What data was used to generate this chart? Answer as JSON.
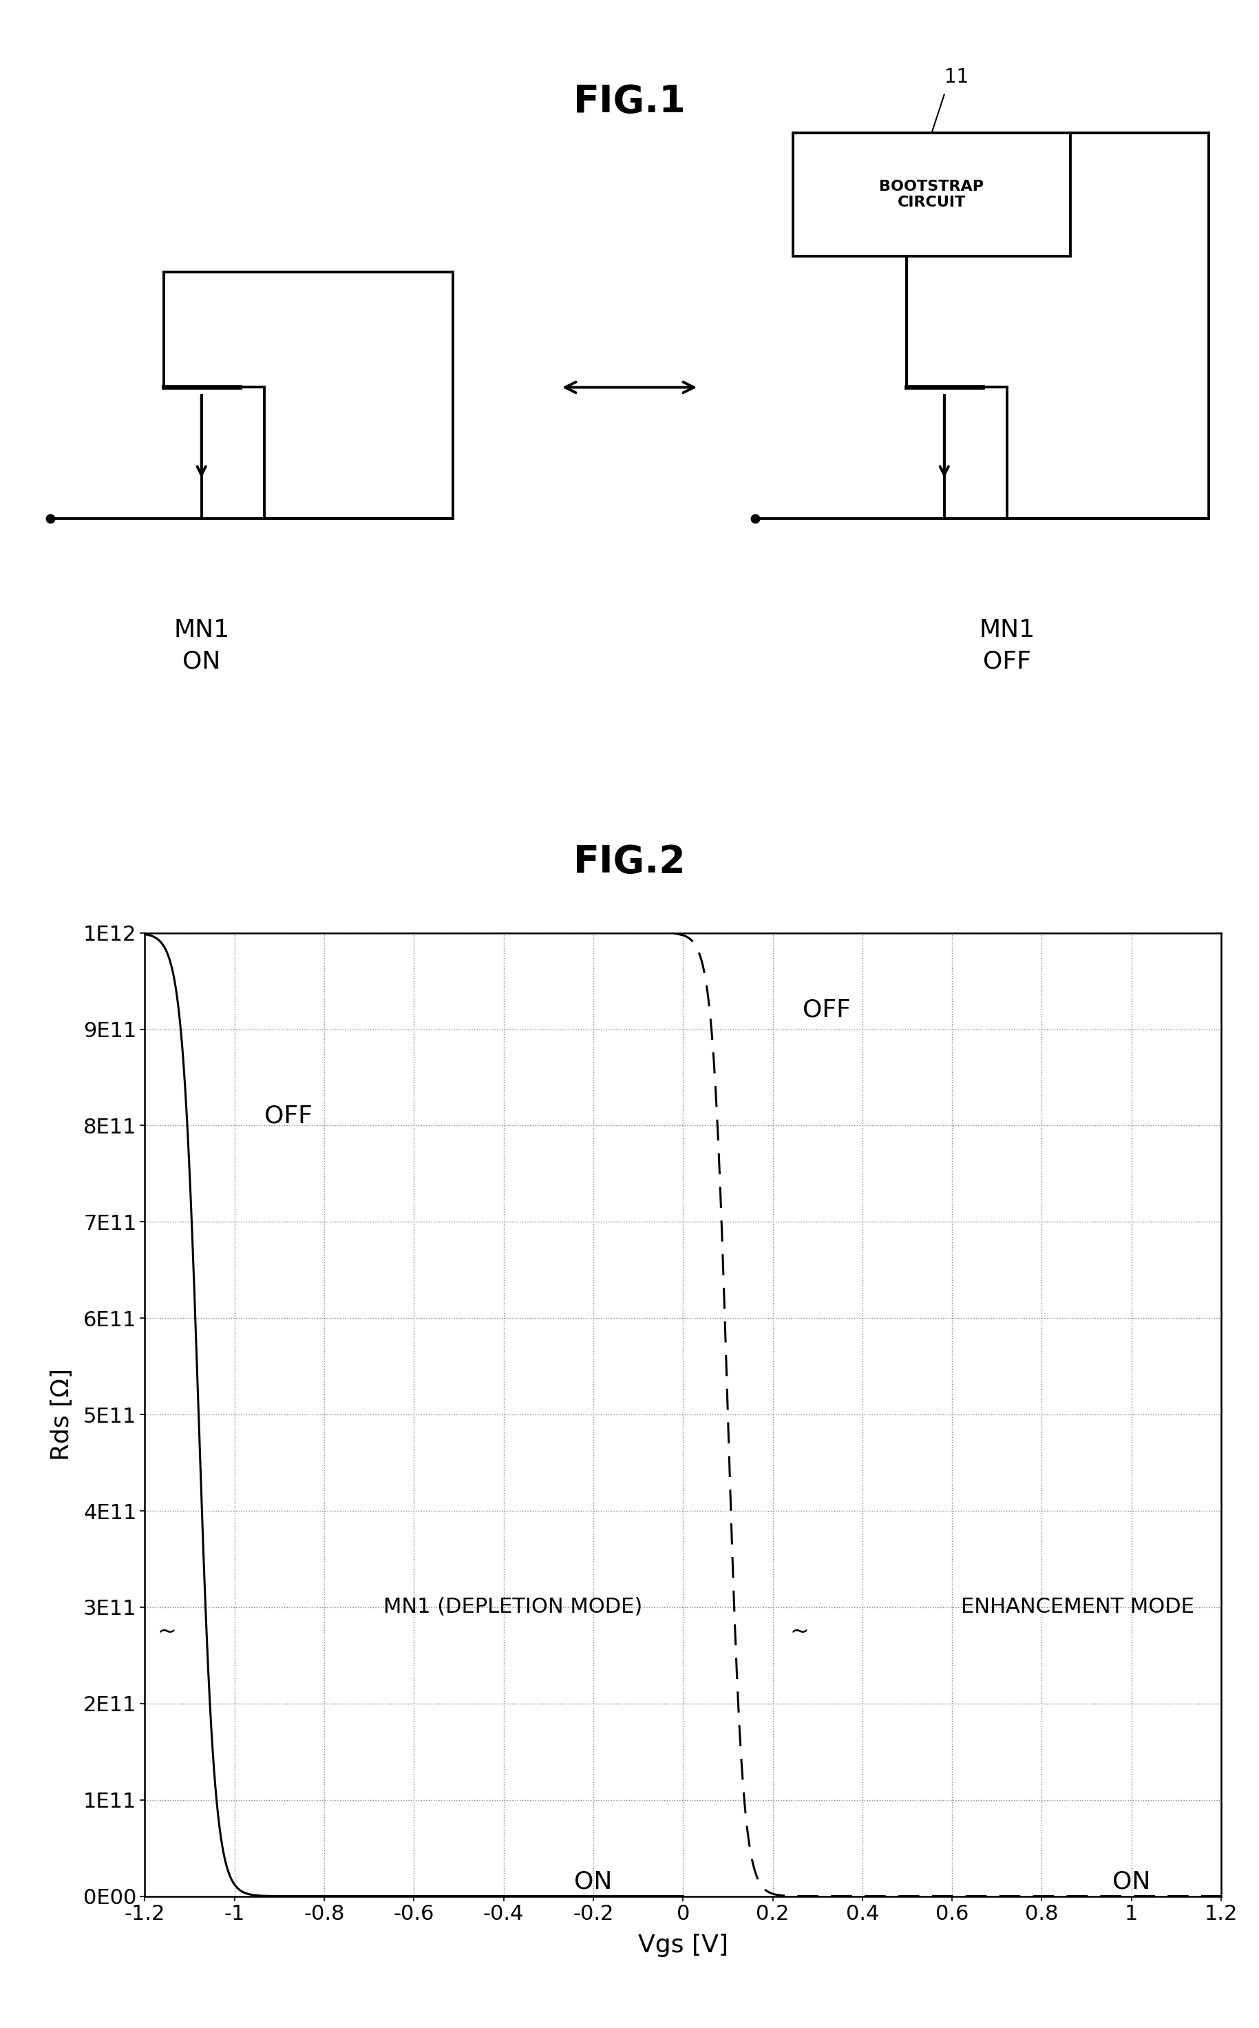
{
  "fig1_title": "FIG.1",
  "fig2_title": "FIG.2",
  "fig2_xlabel": "Vgs [V]",
  "fig2_ylabel": "Rds [Ω]",
  "fig2_xlim": [
    -1.2,
    1.2
  ],
  "fig2_ylim": [
    0,
    1000000000000.0
  ],
  "fig2_yticks": [
    0,
    100000000000.0,
    200000000000.0,
    300000000000.0,
    400000000000.0,
    500000000000.0,
    600000000000.0,
    700000000000.0,
    800000000000.0,
    900000000000.0,
    1000000000000.0
  ],
  "fig2_ytick_labels": [
    "0E00",
    "1E11",
    "2E11",
    "3E11",
    "4E11",
    "5E11",
    "6E11",
    "7E11",
    "8E11",
    "9E11",
    "1E12"
  ],
  "fig2_xticks": [
    -1.2,
    -1.0,
    -0.8,
    -0.6,
    -0.4,
    -0.2,
    0.0,
    0.2,
    0.4,
    0.6,
    0.8,
    1.0,
    1.2
  ],
  "fig2_xtick_labels": [
    "-1.2",
    "-1",
    "-0.8",
    "-0.6",
    "-0.4",
    "-0.2",
    "0",
    "0.2",
    "0.4",
    "0.6",
    "0.8",
    "1",
    "1.2"
  ],
  "label_mn1_on": "MN1\nON",
  "label_mn1_off": "MN1\nOFF",
  "label_bootstrap": "BOOTSTRAP\nCIRCUIT",
  "label_11": "11",
  "label_off_left": "OFF",
  "label_off_right": "OFF",
  "label_on_center": "ON",
  "label_on_right": "ON",
  "label_depletion": "MN1 (DEPLETION MODE)",
  "label_enhancement": "ENHANCEMENT MODE",
  "bg_color": "#ffffff",
  "font_size_title": 40,
  "font_size_label": 24,
  "font_size_tick": 22,
  "font_size_annot": 24,
  "font_size_circuit_label": 26
}
